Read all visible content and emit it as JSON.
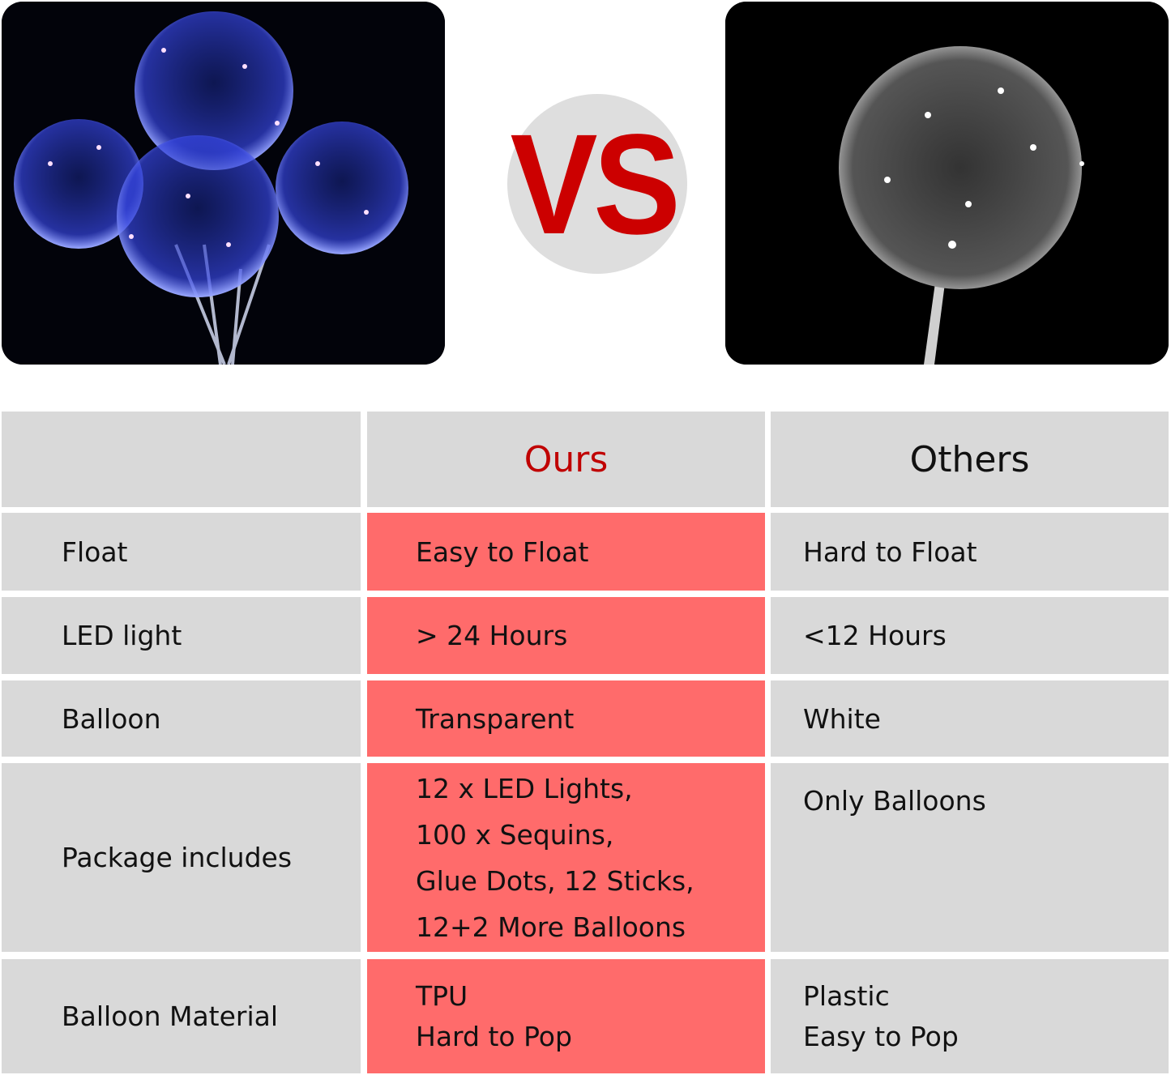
{
  "vs_label": "VS",
  "colors": {
    "accent_red": "#cc0000",
    "ours_cell": "#ff6b6b",
    "cell_gray": "#d9d9d9",
    "vs_circle": "#dedede"
  },
  "images": {
    "left": "colorful LED bobo balloons bouquet",
    "right": "single white LED balloon"
  },
  "table": {
    "headers": [
      "",
      "Ours",
      "Others"
    ],
    "rows": [
      {
        "feature": "Float",
        "ours": [
          "Easy to Float"
        ],
        "others": [
          "Hard to Float"
        ]
      },
      {
        "feature": "LED light",
        "ours": [
          "> 24 Hours"
        ],
        "others": [
          "<12 Hours"
        ]
      },
      {
        "feature": "Balloon",
        "ours": [
          "Transparent"
        ],
        "others": [
          "White"
        ]
      },
      {
        "feature": "Package includes",
        "ours": [
          "12 x LED Lights,",
          "100 x Sequins,",
          "Glue Dots, 12 Sticks,",
          "12+2 More Balloons"
        ],
        "others": [
          "Only Balloons"
        ]
      },
      {
        "feature": "Balloon Material",
        "ours": [
          "TPU",
          "Hard to Pop"
        ],
        "others": [
          "Plastic",
          "Easy to Pop"
        ]
      }
    ]
  }
}
